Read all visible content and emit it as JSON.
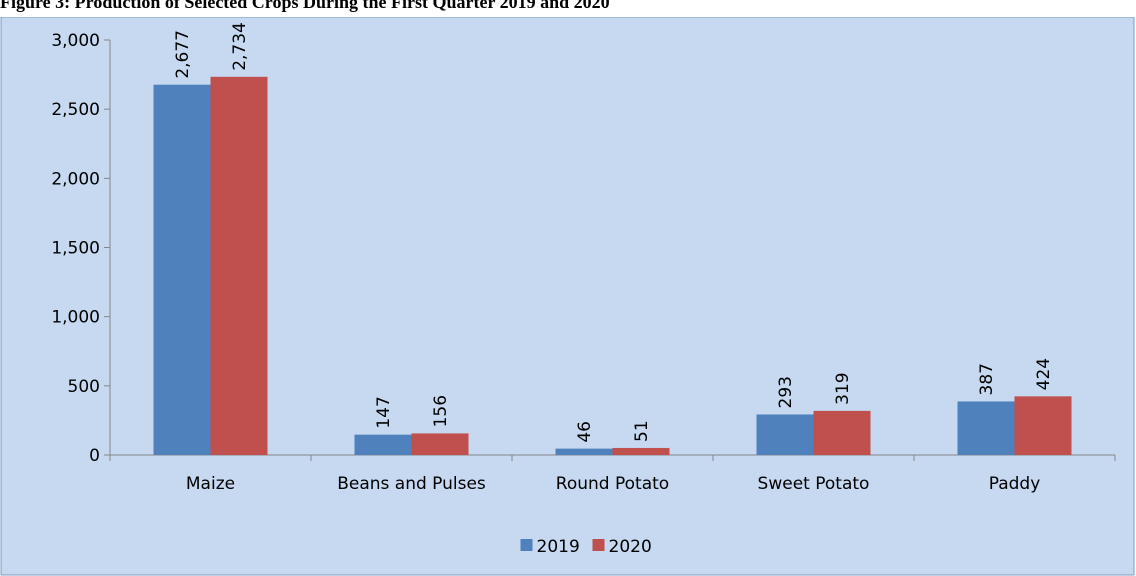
{
  "chart_data": {
    "type": "bar",
    "title": "Figure 3: Production of Selected Crops During the First Quarter 2019 and 2020",
    "categories": [
      "Maize",
      "Beans and Pulses",
      "Round Potato",
      "Sweet Potato",
      "Paddy"
    ],
    "series": [
      {
        "name": "2019",
        "color": "#4f81bd",
        "values": [
          2677,
          147,
          46,
          293,
          387
        ],
        "value_labels": [
          "2,677",
          "147",
          "46",
          "293",
          "387"
        ]
      },
      {
        "name": "2020",
        "color": "#c0504d",
        "values": [
          2734,
          156,
          51,
          319,
          424
        ],
        "value_labels": [
          "2,734",
          "156",
          "51",
          "319",
          "424"
        ]
      }
    ],
    "ylim": [
      0,
      3000
    ],
    "yticks": [
      0,
      500,
      {
        "value": 1000,
        "label": "1,000"
      },
      {
        "value": 1500,
        "label": "1,500"
      },
      {
        "value": 2000,
        "label": "2,000"
      },
      {
        "value": 2500,
        "label": "2,500"
      },
      {
        "value": 3000,
        "label": "3,000"
      }
    ],
    "legend": "bottom"
  }
}
